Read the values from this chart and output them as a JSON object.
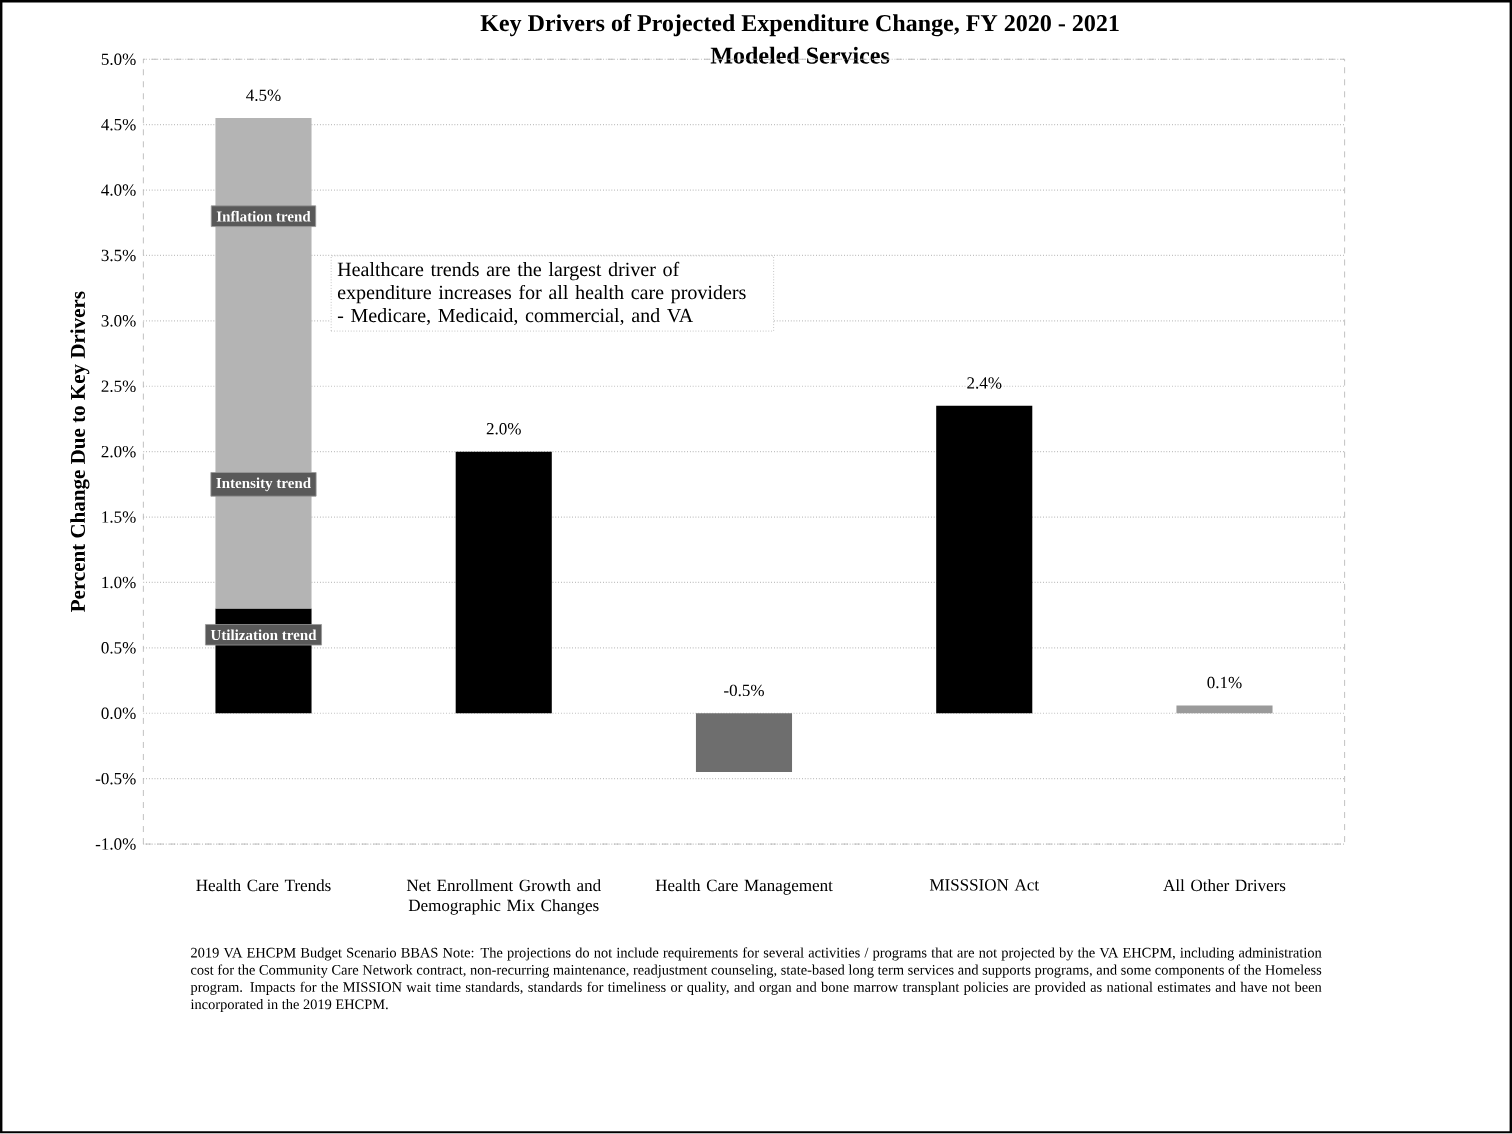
{
  "chart_data": {
    "type": "bar",
    "stacked": true,
    "title": "Key Drivers of Projected Expenditure Change, FY 2020 - 2021",
    "subtitle": "Modeled Services",
    "ylabel": "Percent Change Due to Key Drivers",
    "categories": [
      "Health Care Trends",
      "Net Enrollment Growth and Demographic Mix Changes",
      "Health Care Management",
      "MISSSION Act",
      "All Other Drivers"
    ],
    "series": [
      {
        "values": [
          0.8,
          2.0,
          -0.45,
          2.35,
          0.06
        ],
        "colors": [
          "#000000",
          "#000000",
          "#6e6e6e",
          "#000000",
          "#9a9a9a"
        ]
      },
      {
        "values": [
          3.75,
          null,
          null,
          null,
          null
        ],
        "color": "#b4b4b4"
      }
    ],
    "totals": [
      "4.5%",
      "2.0%",
      "-0.5%",
      "2.4%",
      "0.1%"
    ],
    "ylim": [
      -1,
      5
    ],
    "yticks": [
      {
        "value": -1,
        "label": "-1.0%"
      },
      {
        "value": -0.5,
        "label": "-0.5%"
      },
      {
        "value": 0,
        "label": "0.0%"
      },
      {
        "value": 0.5,
        "label": "0.5%"
      },
      {
        "value": 1,
        "label": "1.0%"
      },
      {
        "value": 1.5,
        "label": "1.5%"
      },
      {
        "value": 2,
        "label": "2.0%"
      },
      {
        "value": 2.5,
        "label": "2.5%"
      },
      {
        "value": 3,
        "label": "3.0%"
      },
      {
        "value": 3.5,
        "label": "3.5%"
      },
      {
        "value": 4,
        "label": "4.0%"
      },
      {
        "value": 4.5,
        "label": "4.5%"
      },
      {
        "value": 5,
        "label": "5.0%"
      }
    ],
    "grid": "y",
    "annotations": [
      "Utilization trend",
      "Intensity trend",
      "Inflation trend",
      "Healthcare trends are the largest driver of expenditure increases for all health care providers - Medicare, Medicaid, commercial, and VA",
      "2019 VA EHCPM Budget Scenario BBAS Note: The projections do not include requirements for several activities / programs that are not projected by the VA EHCPM, including administration cost for the Community Care Network contract, non-recurring maintenance, readjustment counseling, state-based long term services and supports programs, and some components of the Homeless program. Impacts for the MISSION wait time standards, standards for timeliness or quality, and organ and bone marrow transplant policies are provided as national estimates and have not been incorporated in the 2019 EHCPM."
    ]
  }
}
